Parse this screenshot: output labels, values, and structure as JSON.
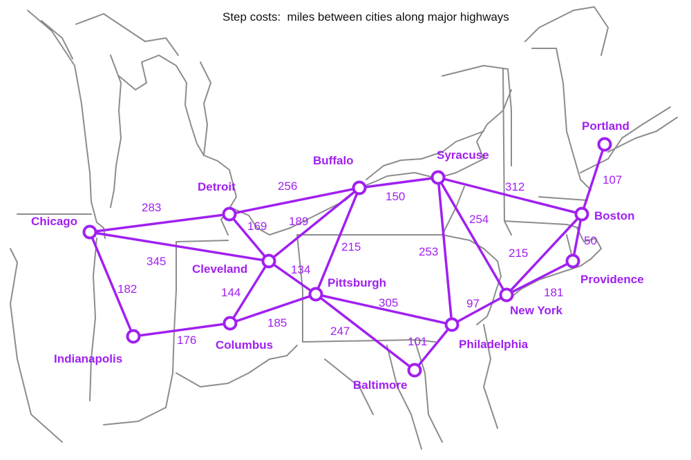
{
  "title": "Step costs:  miles between cities along major highways",
  "colors": {
    "route": "#a020f0",
    "border": "#8c8c8c",
    "background": "#ffffff"
  },
  "cities": [
    {
      "id": "chicago",
      "name": "Chicago"
    },
    {
      "id": "detroit",
      "name": "Detroit"
    },
    {
      "id": "cleveland",
      "name": "Cleveland"
    },
    {
      "id": "indianapolis",
      "name": "Indianapolis"
    },
    {
      "id": "columbus",
      "name": "Columbus"
    },
    {
      "id": "buffalo",
      "name": "Buffalo"
    },
    {
      "id": "pittsburgh",
      "name": "Pittsburgh"
    },
    {
      "id": "syracuse",
      "name": "Syracuse"
    },
    {
      "id": "baltimore",
      "name": "Baltimore"
    },
    {
      "id": "philadelphia",
      "name": "Philadelphia"
    },
    {
      "id": "new-york",
      "name": "New York"
    },
    {
      "id": "boston",
      "name": "Boston"
    },
    {
      "id": "providence",
      "name": "Providence"
    },
    {
      "id": "portland",
      "name": "Portland"
    }
  ],
  "roads": [
    {
      "from": "chicago",
      "to": "detroit",
      "miles": "283"
    },
    {
      "from": "chicago",
      "to": "cleveland",
      "miles": "345"
    },
    {
      "from": "chicago",
      "to": "indianapolis",
      "miles": "182"
    },
    {
      "from": "indianapolis",
      "to": "columbus",
      "miles": "176"
    },
    {
      "from": "detroit",
      "to": "cleveland",
      "miles": "169"
    },
    {
      "from": "detroit",
      "to": "buffalo",
      "miles": "256"
    },
    {
      "from": "cleveland",
      "to": "buffalo",
      "miles": "189"
    },
    {
      "from": "cleveland",
      "to": "columbus",
      "miles": "144"
    },
    {
      "from": "cleveland",
      "to": "pittsburgh",
      "miles": "134"
    },
    {
      "from": "columbus",
      "to": "pittsburgh",
      "miles": "185"
    },
    {
      "from": "buffalo",
      "to": "pittsburgh",
      "miles": "215"
    },
    {
      "from": "buffalo",
      "to": "syracuse",
      "miles": "150"
    },
    {
      "from": "pittsburgh",
      "to": "philadelphia",
      "miles": "305"
    },
    {
      "from": "pittsburgh",
      "to": "baltimore",
      "miles": "247"
    },
    {
      "from": "baltimore",
      "to": "philadelphia",
      "miles": "101"
    },
    {
      "from": "philadelphia",
      "to": "new-york",
      "miles": "97"
    },
    {
      "from": "syracuse",
      "to": "philadelphia",
      "miles": "253"
    },
    {
      "from": "syracuse",
      "to": "new-york",
      "miles": "254"
    },
    {
      "from": "syracuse",
      "to": "boston",
      "miles": "312"
    },
    {
      "from": "new-york",
      "to": "boston",
      "miles": "215"
    },
    {
      "from": "new-york",
      "to": "providence",
      "miles": "181"
    },
    {
      "from": "boston",
      "to": "providence",
      "miles": "50"
    },
    {
      "from": "boston",
      "to": "portland",
      "miles": "107"
    }
  ]
}
